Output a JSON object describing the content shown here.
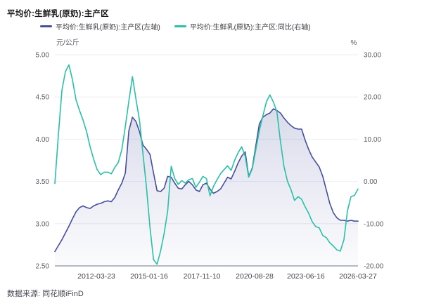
{
  "title": "平均价:生鲜乳(原奶):主产区",
  "legend": [
    {
      "label": "平均价:生鲜乳(原奶):主产区(左轴)",
      "color": "#454e9c"
    },
    {
      "label": "平均价:生鲜乳(原奶):主产区:同比(右轴)",
      "color": "#29c0a7"
    }
  ],
  "footer": {
    "source": "数据来源: 同花顺iFinD"
  },
  "colors": {
    "grid": "#ededf4",
    "axis_line": "#a0a3af",
    "price_line": "#454e9c",
    "yoy_line": "#29c0a7",
    "area_fill": "#454e9c"
  },
  "chart_data": {
    "type": "line",
    "title": "平均价:生鲜乳(原奶):主产区",
    "grid": true,
    "legend_position": "top",
    "x_axis": {
      "tick_labels": [
        "2012-03-23",
        "2015-01-16",
        "2017-11-10",
        "2020-08-28",
        "2023-06-16",
        "2026-03-27"
      ],
      "tick_positions": [
        0.137,
        0.311,
        0.485,
        0.659,
        0.828,
        1.0
      ]
    },
    "y_left": {
      "unit": "元/公斤",
      "min": 2.5,
      "max": 5.0,
      "ticks": [
        "5.00",
        "4.50",
        "4.00",
        "3.50",
        "3.00",
        "2.50"
      ]
    },
    "y_right": {
      "unit": "%",
      "min": -20,
      "max": 30,
      "ticks": [
        "30.00",
        "20.00",
        "10.00",
        "0.00",
        "-10.00",
        "-20.00"
      ]
    },
    "series": [
      {
        "name": "平均价:生鲜乳(原奶):主产区(左轴)",
        "axis": "left",
        "area": true,
        "color": "#454e9c",
        "values": [
          2.67,
          2.74,
          2.81,
          2.89,
          2.97,
          3.06,
          3.14,
          3.19,
          3.21,
          3.19,
          3.18,
          3.21,
          3.23,
          3.24,
          3.26,
          3.27,
          3.26,
          3.31,
          3.4,
          3.48,
          3.6,
          4.1,
          4.26,
          4.21,
          4.09,
          3.93,
          3.88,
          3.82,
          3.6,
          3.39,
          3.38,
          3.42,
          3.56,
          3.55,
          3.48,
          3.42,
          3.41,
          3.46,
          3.5,
          3.46,
          3.4,
          3.38,
          3.46,
          3.48,
          3.41,
          3.36,
          3.38,
          3.41,
          3.48,
          3.55,
          3.53,
          3.62,
          3.72,
          3.8,
          3.85,
          3.56,
          3.66,
          3.92,
          4.18,
          4.26,
          4.29,
          4.31,
          4.36,
          4.34,
          4.31,
          4.25,
          4.2,
          4.16,
          4.13,
          4.12,
          4.12,
          3.99,
          3.88,
          3.79,
          3.73,
          3.67,
          3.56,
          3.4,
          3.24,
          3.13,
          3.07,
          3.04,
          3.04,
          3.03,
          3.04,
          3.03,
          3.03
        ]
      },
      {
        "name": "平均价:生鲜乳(原奶):主产区:同比(右轴)",
        "axis": "right",
        "area": false,
        "color": "#29c0a7",
        "values": [
          -0.5,
          11.0,
          21.5,
          26.0,
          27.6,
          24.0,
          19.3,
          16.8,
          14.5,
          11.8,
          8.2,
          5.3,
          2.8,
          1.6,
          2.2,
          2.2,
          1.8,
          3.3,
          4.5,
          7.5,
          13.0,
          19.0,
          24.8,
          19.5,
          14.5,
          6.5,
          -1.5,
          -11.0,
          -18.5,
          -19.6,
          -16.5,
          -12.3,
          -7.0,
          3.6,
          0.7,
          -0.7,
          0.2,
          -0.4,
          0.4,
          0.7,
          -1.4,
          -0.2,
          1.2,
          0.7,
          -3.4,
          -1.2,
          0.4,
          1.8,
          2.8,
          3.7,
          2.6,
          5.0,
          6.8,
          8.2,
          6.0,
          1.0,
          3.0,
          7.5,
          12.0,
          15.5,
          18.8,
          20.5,
          18.8,
          16.5,
          9.5,
          3.5,
          0.0,
          -2.0,
          -4.5,
          -3.6,
          -4.2,
          -6.0,
          -7.5,
          -9.5,
          -10.7,
          -11.0,
          -12.8,
          -13.3,
          -14.5,
          -15.3,
          -16.2,
          -16.5,
          -13.8,
          -7.0,
          -3.6,
          -3.3,
          -1.8
        ]
      }
    ]
  }
}
